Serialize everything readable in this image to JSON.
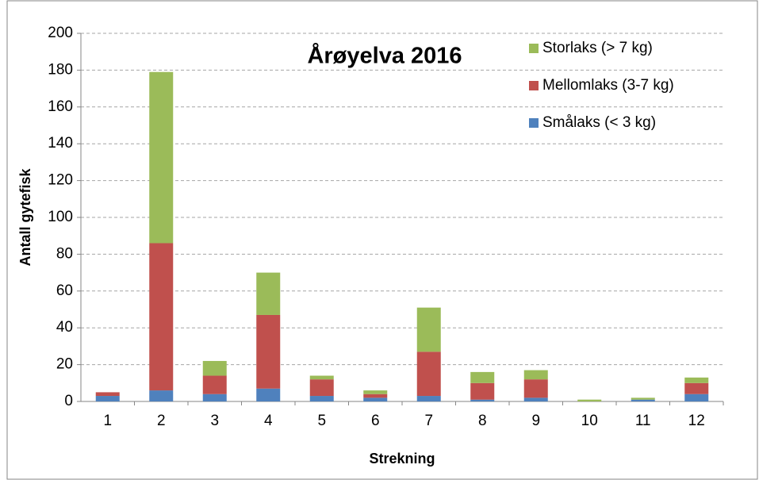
{
  "chart_data": {
    "type": "stacked-bar",
    "title": "Årøyelva 2016",
    "x_label": "Strekning",
    "y_label": "Antall gytefisk",
    "categories": [
      "1",
      "2",
      "3",
      "4",
      "5",
      "6",
      "7",
      "8",
      "9",
      "10",
      "11",
      "12"
    ],
    "series": [
      {
        "name": "Smålaks (< 3 kg)",
        "color": "#4f81bd",
        "values": [
          3,
          6,
          4,
          7,
          3,
          2,
          3,
          1,
          2,
          0,
          1,
          4
        ]
      },
      {
        "name": "Mellomlaks (3-7 kg)",
        "color": "#c0504d",
        "values": [
          2,
          80,
          10,
          40,
          9,
          2,
          24,
          9,
          10,
          0,
          0,
          6
        ]
      },
      {
        "name": "Storlaks (> 7 kg)",
        "color": "#9bbb59",
        "values": [
          0,
          93,
          8,
          23,
          2,
          2,
          24,
          6,
          5,
          1,
          1,
          3
        ]
      }
    ],
    "ylim": [
      0,
      200
    ],
    "yticks": [
      0,
      20,
      40,
      60,
      80,
      100,
      120,
      140,
      160,
      180,
      200
    ],
    "grid": true
  }
}
